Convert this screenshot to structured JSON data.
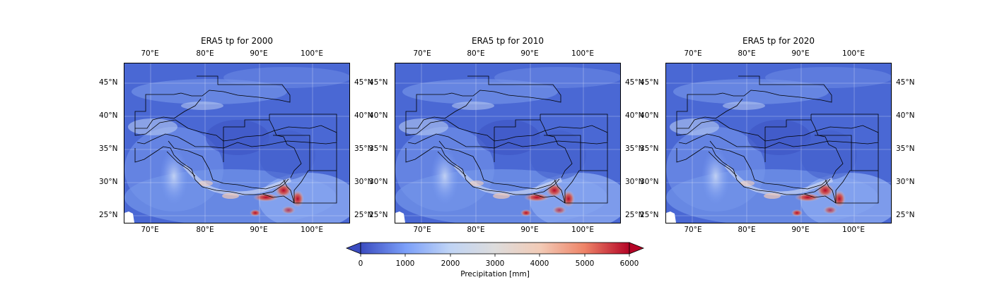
{
  "panels": [
    {
      "title": "ERA5 tp for 2000",
      "year": "2000"
    },
    {
      "title": "ERA5 tp for 2010",
      "year": "2010"
    },
    {
      "title": "ERA5 tp for 2020",
      "year": "2020"
    }
  ],
  "lon_ticks": [
    "70°E",
    "80°E",
    "90°E",
    "100°E"
  ],
  "lat_ticks": [
    "45°N",
    "40°N",
    "35°N",
    "30°N",
    "25°N"
  ],
  "colorbar": {
    "label": "Precipitation [mm]",
    "ticks": [
      "0",
      "1000",
      "2000",
      "3000",
      "4000",
      "5000",
      "6000"
    ],
    "colormap": "coolwarm",
    "extend": "both",
    "colors": [
      "#3b4cc0",
      "#7b9ff9",
      "#c0d4f5",
      "#dddcdc",
      "#f2cbb7",
      "#ee8468",
      "#b40426"
    ]
  }
}
